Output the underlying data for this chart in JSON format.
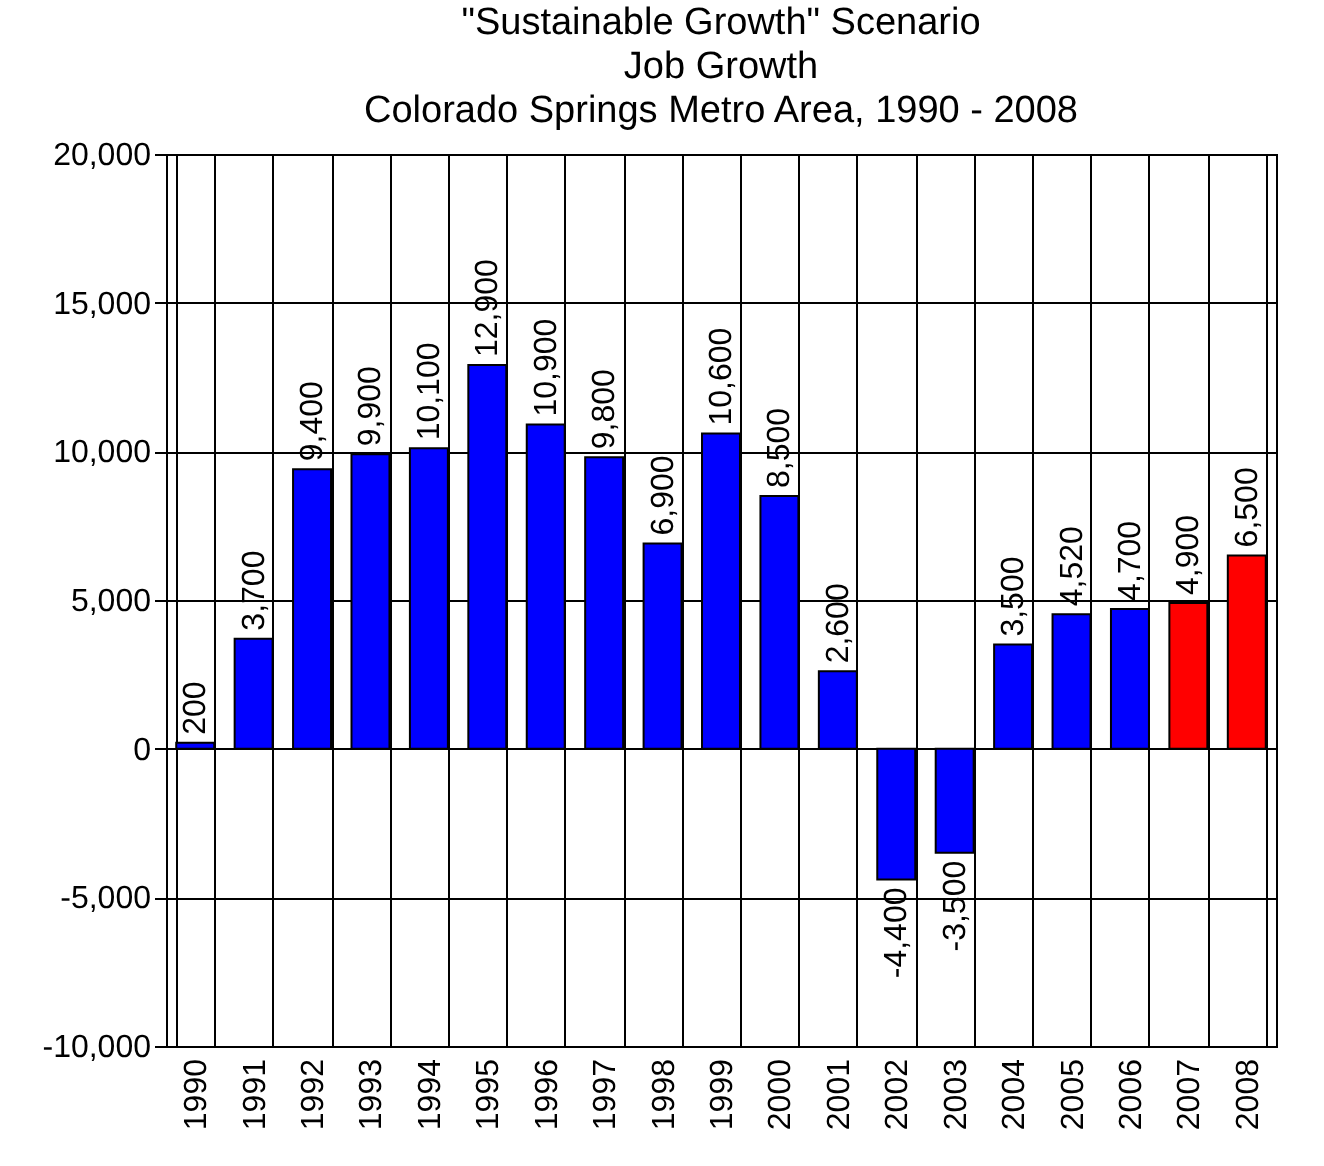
{
  "chart_data": {
    "type": "bar",
    "title": "\"Sustainable Growth\" Scenario\nJob Growth\nColorado Springs Metro Area, 1990 - 2008",
    "categories": [
      "1990",
      "1991",
      "1992",
      "1993",
      "1994",
      "1995",
      "1996",
      "1997",
      "1998",
      "1999",
      "2000",
      "2001",
      "2002",
      "2003",
      "2004",
      "2005",
      "2006",
      "2007",
      "2008"
    ],
    "values": [
      200,
      3700,
      9400,
      9900,
      10100,
      12900,
      10900,
      9800,
      6900,
      10600,
      8500,
      2600,
      -4400,
      -3500,
      3500,
      4520,
      4700,
      4900,
      6500
    ],
    "value_labels": [
      "200",
      "3,700",
      "9,400",
      "9,900",
      "10,100",
      "12,900",
      "10,900",
      "9,800",
      "6,900",
      "10,600",
      "8,500",
      "2,600",
      "-4,400",
      "-3,500",
      "3,500",
      "4,520",
      "4,700",
      "4,900",
      "6,500"
    ],
    "colors": [
      "#0000ff",
      "#0000ff",
      "#0000ff",
      "#0000ff",
      "#0000ff",
      "#0000ff",
      "#0000ff",
      "#0000ff",
      "#0000ff",
      "#0000ff",
      "#0000ff",
      "#0000ff",
      "#0000ff",
      "#0000ff",
      "#0000ff",
      "#0000ff",
      "#0000ff",
      "#ff0000",
      "#ff0000"
    ],
    "ylim": [
      -10000,
      20000
    ],
    "yticks": [
      {
        "value": -10000,
        "label": "-10,000"
      },
      {
        "value": -5000,
        "label": "-5,000"
      },
      0,
      {
        "value": 5000,
        "label": "5,000"
      },
      {
        "value": 10000,
        "label": "10,000"
      },
      {
        "value": 15000,
        "label": "15,000"
      },
      {
        "value": 20000,
        "label": "20,000"
      }
    ],
    "grid": true
  }
}
